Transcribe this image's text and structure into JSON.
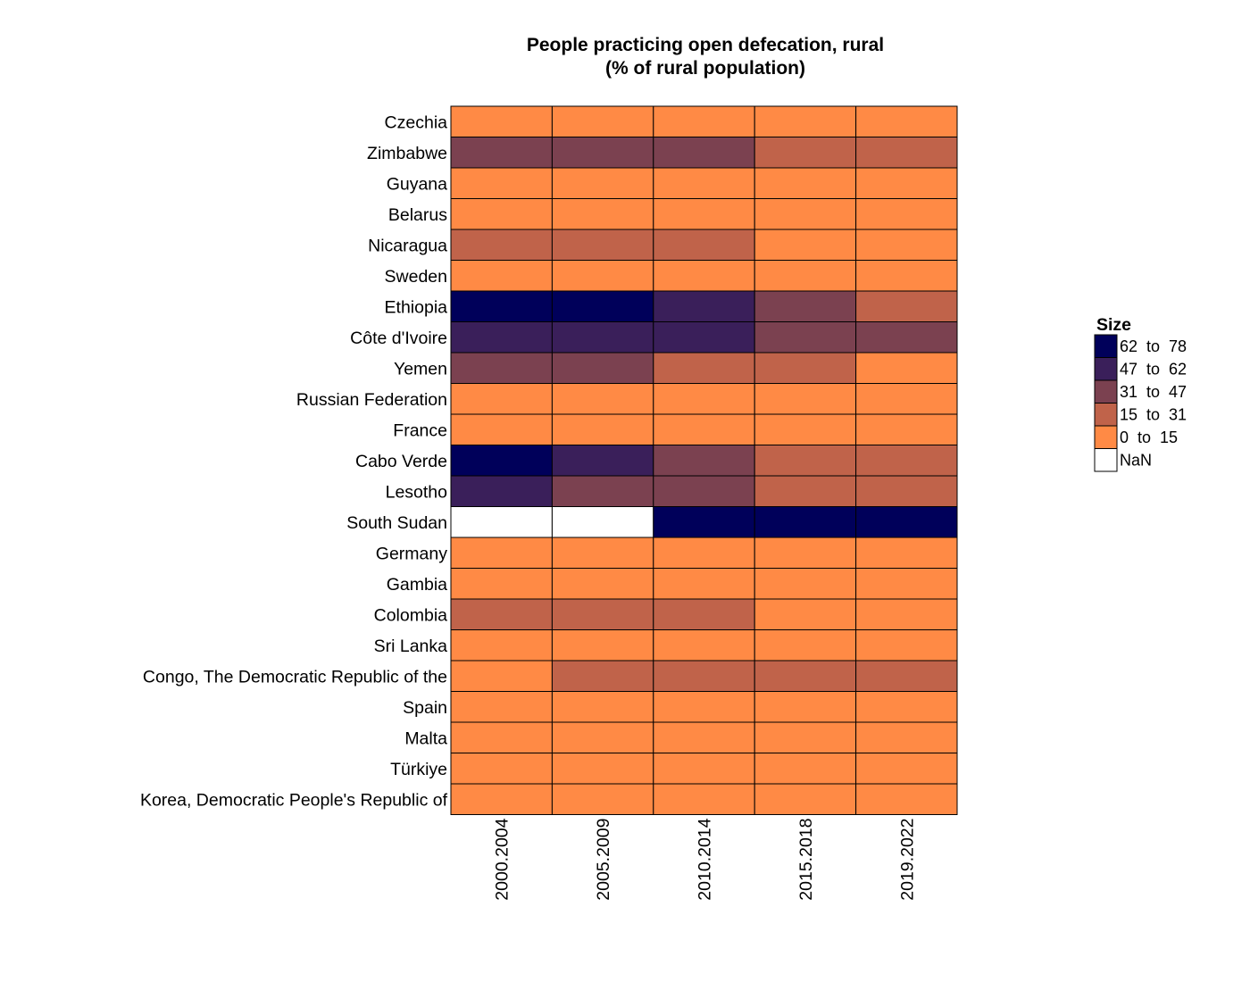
{
  "chart_data": {
    "type": "heatmap",
    "title_lines": [
      "People practicing open defecation, rural",
      "(% of rural population)"
    ],
    "columns": [
      "2000.2004",
      "2005.2009",
      "2010.2014",
      "2015.2018",
      "2019.2022"
    ],
    "rows": [
      "Czechia",
      "Zimbabwe",
      "Guyana",
      "Belarus",
      "Nicaragua",
      "Sweden",
      "Ethiopia",
      "Côte d'Ivoire",
      "Yemen",
      "Russian Federation",
      "France",
      "Cabo Verde",
      "Lesotho",
      "South Sudan",
      "Germany",
      "Gambia",
      "Colombia",
      "Sri Lanka",
      "Congo, The Democratic Republic of the",
      "Spain",
      "Malta",
      "Türkiye",
      "Korea, Democratic People's Republic of"
    ],
    "values": [
      [
        0,
        0,
        0,
        0,
        0
      ],
      [
        38,
        36,
        33,
        28,
        25
      ],
      [
        8,
        7,
        6,
        5,
        4
      ],
      [
        0,
        0,
        0,
        0,
        0
      ],
      [
        22,
        20,
        17,
        14,
        12
      ],
      [
        0,
        0,
        0,
        0,
        0
      ],
      [
        74,
        65,
        50,
        35,
        25
      ],
      [
        55,
        53,
        50,
        43,
        40
      ],
      [
        38,
        35,
        28,
        22,
        14
      ],
      [
        0,
        0,
        0,
        0,
        0
      ],
      [
        0,
        0,
        0,
        0,
        0
      ],
      [
        65,
        52,
        40,
        30,
        22
      ],
      [
        52,
        45,
        38,
        28,
        20
      ],
      [
        null,
        null,
        72,
        70,
        68
      ],
      [
        0,
        0,
        0,
        0,
        0
      ],
      [
        5,
        4,
        3,
        2,
        2
      ],
      [
        20,
        18,
        16,
        14,
        12
      ],
      [
        4,
        3,
        2,
        1,
        1
      ],
      [
        14,
        18,
        20,
        20,
        18
      ],
      [
        0,
        0,
        0,
        0,
        0
      ],
      [
        0,
        0,
        0,
        0,
        0
      ],
      [
        1,
        0,
        0,
        0,
        0
      ],
      [
        4,
        3,
        2,
        1,
        0
      ]
    ],
    "legend": {
      "title": "Size",
      "placement": "right",
      "bins": [
        {
          "label": "62  to  78",
          "min": 62,
          "max": 78,
          "color": "#00005a"
        },
        {
          "label": "47  to  62",
          "min": 47,
          "max": 62,
          "color": "#3a1f5a"
        },
        {
          "label": "31  to  47",
          "min": 31,
          "max": 47,
          "color": "#7b4150"
        },
        {
          "label": "15  to  31",
          "min": 15,
          "max": 31,
          "color": "#c0634a"
        },
        {
          "label": "0  to  15",
          "min": 0,
          "max": 15,
          "color": "#ff8a45"
        },
        {
          "label": "NaN",
          "min": null,
          "max": null,
          "color": "#ffffff"
        }
      ]
    }
  }
}
